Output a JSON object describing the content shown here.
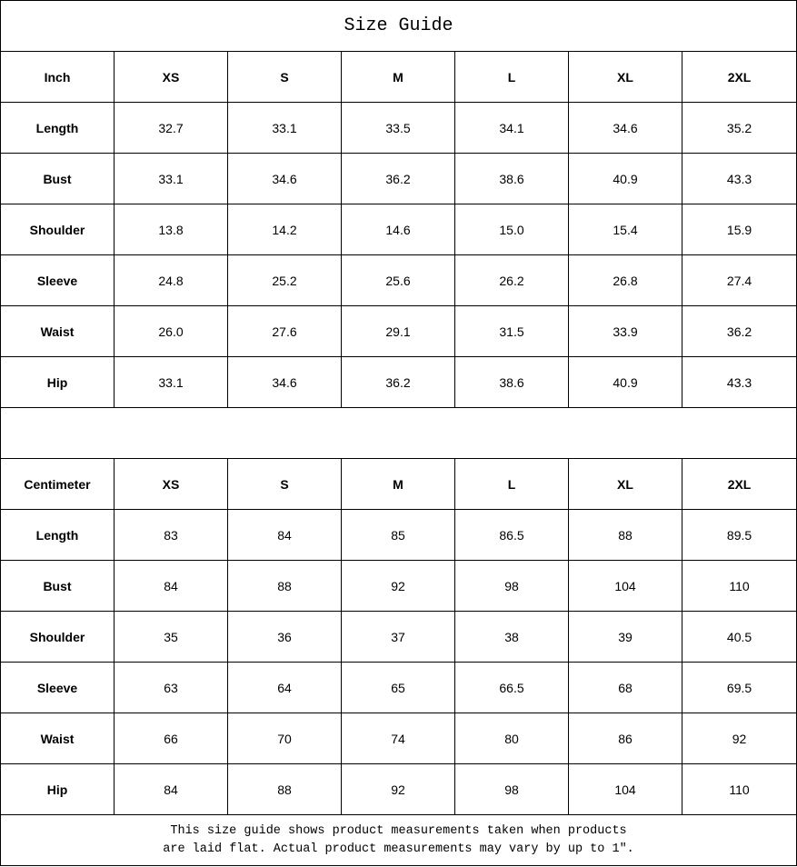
{
  "title": "Size Guide",
  "tables": [
    {
      "unit": "Inch",
      "sizes": [
        "XS",
        "S",
        "M",
        "L",
        "XL",
        "2XL"
      ],
      "rows": [
        {
          "label": "Length",
          "values": [
            "32.7",
            "33.1",
            "33.5",
            "34.1",
            "34.6",
            "35.2"
          ]
        },
        {
          "label": "Bust",
          "values": [
            "33.1",
            "34.6",
            "36.2",
            "38.6",
            "40.9",
            "43.3"
          ]
        },
        {
          "label": "Shoulder",
          "values": [
            "13.8",
            "14.2",
            "14.6",
            "15.0",
            "15.4",
            "15.9"
          ]
        },
        {
          "label": "Sleeve",
          "values": [
            "24.8",
            "25.2",
            "25.6",
            "26.2",
            "26.8",
            "27.4"
          ]
        },
        {
          "label": "Waist",
          "values": [
            "26.0",
            "27.6",
            "29.1",
            "31.5",
            "33.9",
            "36.2"
          ]
        },
        {
          "label": "Hip",
          "values": [
            "33.1",
            "34.6",
            "36.2",
            "38.6",
            "40.9",
            "43.3"
          ]
        }
      ]
    },
    {
      "unit": "Centimeter",
      "sizes": [
        "XS",
        "S",
        "M",
        "L",
        "XL",
        "2XL"
      ],
      "rows": [
        {
          "label": "Length",
          "values": [
            "83",
            "84",
            "85",
            "86.5",
            "88",
            "89.5"
          ]
        },
        {
          "label": "Bust",
          "values": [
            "84",
            "88",
            "92",
            "98",
            "104",
            "110"
          ]
        },
        {
          "label": "Shoulder",
          "values": [
            "35",
            "36",
            "37",
            "38",
            "39",
            "40.5"
          ]
        },
        {
          "label": "Sleeve",
          "values": [
            "63",
            "64",
            "65",
            "66.5",
            "68",
            "69.5"
          ]
        },
        {
          "label": "Waist",
          "values": [
            "66",
            "70",
            "74",
            "80",
            "86",
            "92"
          ]
        },
        {
          "label": "Hip",
          "values": [
            "84",
            "88",
            "92",
            "98",
            "104",
            "110"
          ]
        }
      ]
    }
  ],
  "note_line1": "This size guide shows product measurements taken when products",
  "note_line2": "are laid flat. Actual product measurements may vary by up to 1″."
}
